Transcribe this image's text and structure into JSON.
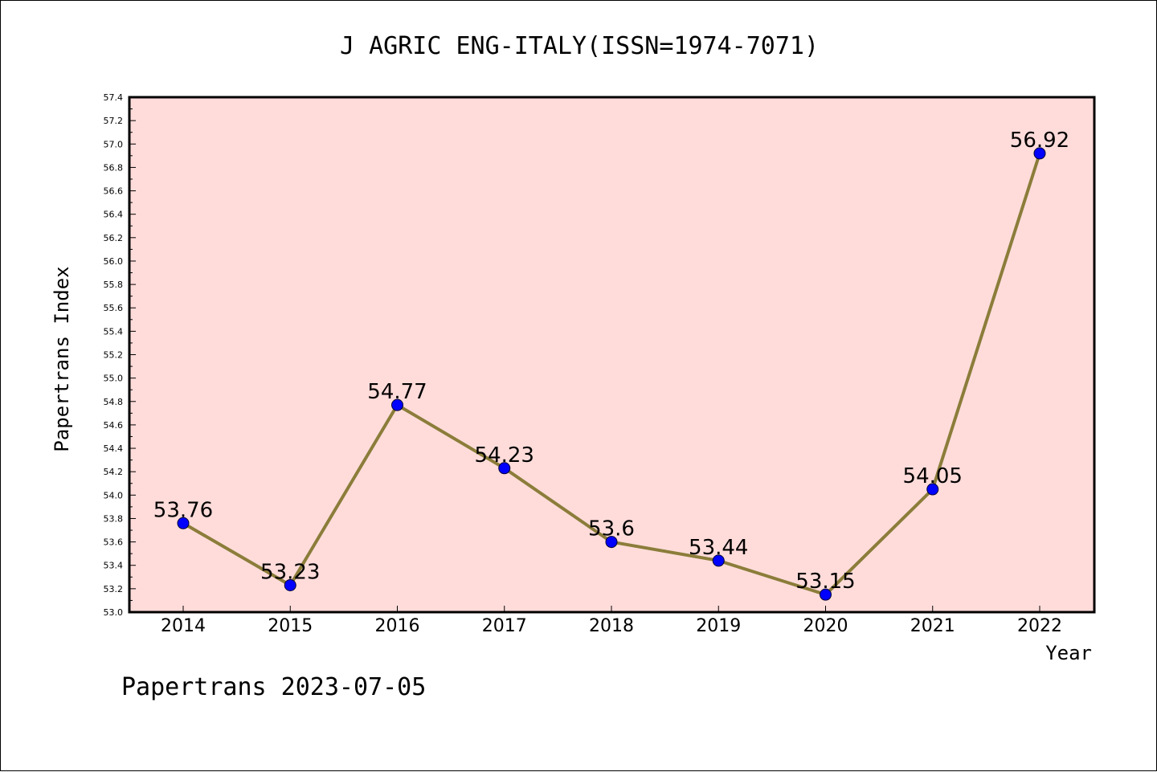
{
  "chart_data": {
    "type": "line",
    "title": "J AGRIC ENG-ITALY(ISSN=1974-7071)",
    "xlabel": "Year",
    "ylabel": "Papertrans Index",
    "categories": [
      "2014",
      "2015",
      "2016",
      "2017",
      "2018",
      "2019",
      "2020",
      "2021",
      "2022"
    ],
    "series": [
      {
        "values": [
          53.76,
          53.23,
          54.77,
          54.23,
          53.6,
          53.44,
          53.15,
          54.05,
          56.92
        ],
        "data_labels": [
          "53.76",
          "53.23",
          "54.77",
          "54.23",
          "53.6",
          "53.44",
          "53.15",
          "54.05",
          "56.92"
        ]
      }
    ],
    "ylim": [
      53.0,
      57.4
    ],
    "yticks": [
      "53.0",
      "53.2",
      "53.4",
      "53.6",
      "53.8",
      "54.0",
      "54.2",
      "54.4",
      "54.6",
      "54.8",
      "55.0",
      "55.2",
      "55.4",
      "55.6",
      "55.8",
      "56.0",
      "56.2",
      "56.4",
      "56.6",
      "56.8",
      "57.0",
      "57.2",
      "57.4"
    ],
    "grid": false,
    "colors": {
      "plot_background": "#FFDCDA",
      "line": "#8B7D3A",
      "marker": "#0000FF"
    }
  },
  "footer": "Papertrans 2023-07-05"
}
